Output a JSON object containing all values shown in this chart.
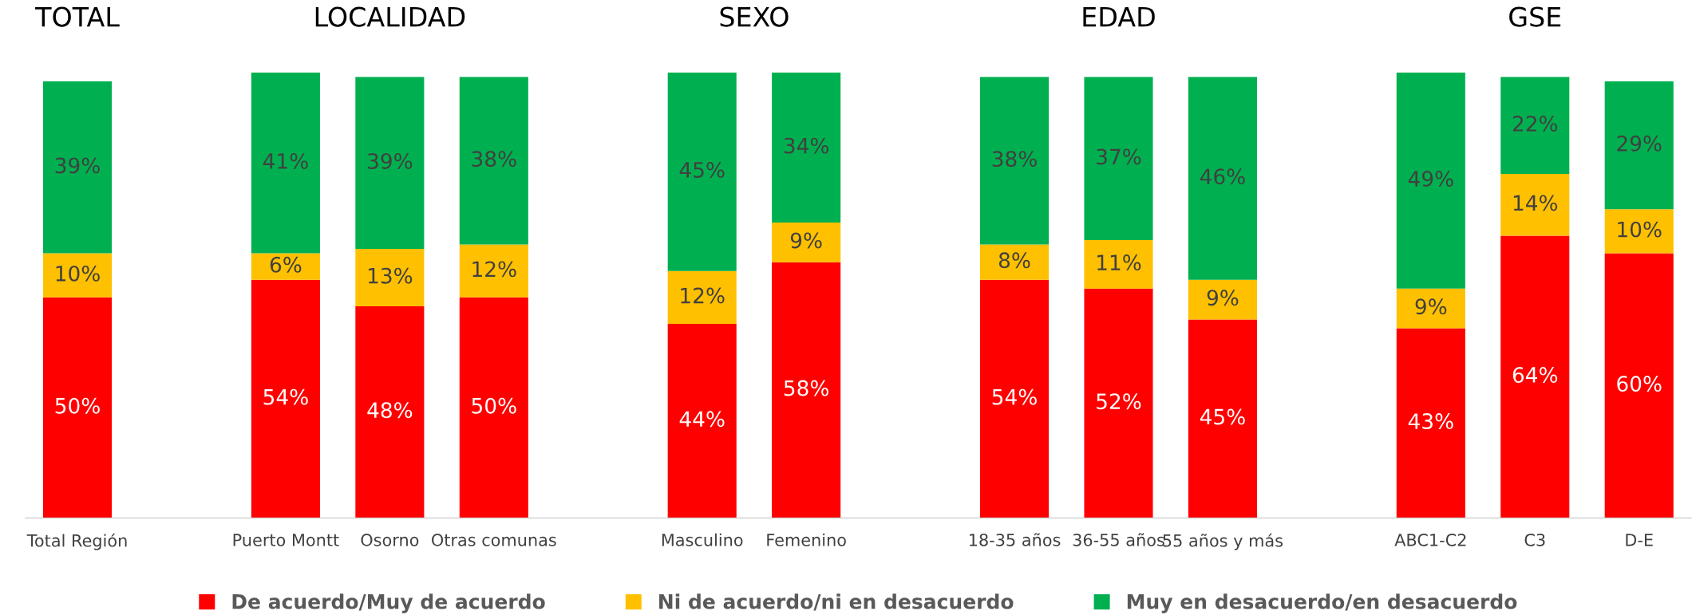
{
  "chart_data": {
    "type": "bar",
    "stacked": true,
    "legend": "bottom",
    "grid": false,
    "categories": [
      "Total Región",
      null,
      "Puerto Montt",
      "Osorno",
      "Otras comunas",
      null,
      "Masculino",
      "Femenino",
      null,
      "18-35 años",
      "36-55 años",
      "55 años y más",
      null,
      "ABC1-C2",
      "C3",
      "D-E"
    ],
    "series": [
      {
        "name": "De acuerdo/Muy de acuerdo",
        "color": "#ff0000",
        "values": [
          50,
          null,
          54,
          48,
          50,
          null,
          44,
          58,
          null,
          54,
          52,
          45,
          null,
          43,
          64,
          60
        ],
        "value_labels": [
          "50%",
          null,
          "54%",
          "48%",
          "50%",
          null,
          "44%",
          "58%",
          null,
          "54%",
          "52%",
          "45%",
          null,
          "43%",
          "64%",
          "60%"
        ]
      },
      {
        "name": "Ni de acuerdo/ni en desacuerdo",
        "color": "#ffc000",
        "values": [
          10,
          null,
          6,
          13,
          12,
          null,
          12,
          9,
          null,
          8,
          11,
          9,
          null,
          9,
          14,
          10
        ],
        "value_labels": [
          "10%",
          null,
          "6%",
          "13%",
          "12%",
          null,
          "12%",
          "9%",
          null,
          "8%",
          "11%",
          "9%",
          null,
          "9%",
          "14%",
          "10%"
        ]
      },
      {
        "name": "Muy en desacuerdo/en desacuerdo",
        "color": "#00b050",
        "values": [
          39,
          null,
          41,
          39,
          38,
          null,
          45,
          34,
          null,
          38,
          37,
          46,
          null,
          49,
          22,
          29
        ],
        "value_labels": [
          "39%",
          null,
          "41%",
          "39%",
          "38%",
          null,
          "45%",
          "34%",
          null,
          "38%",
          "37%",
          "46%",
          null,
          "49%",
          "22%",
          "29%"
        ]
      }
    ],
    "annotations": [
      "TOTAL",
      "LOCALIDAD",
      "SEXO",
      "EDAD",
      "GSE"
    ]
  }
}
